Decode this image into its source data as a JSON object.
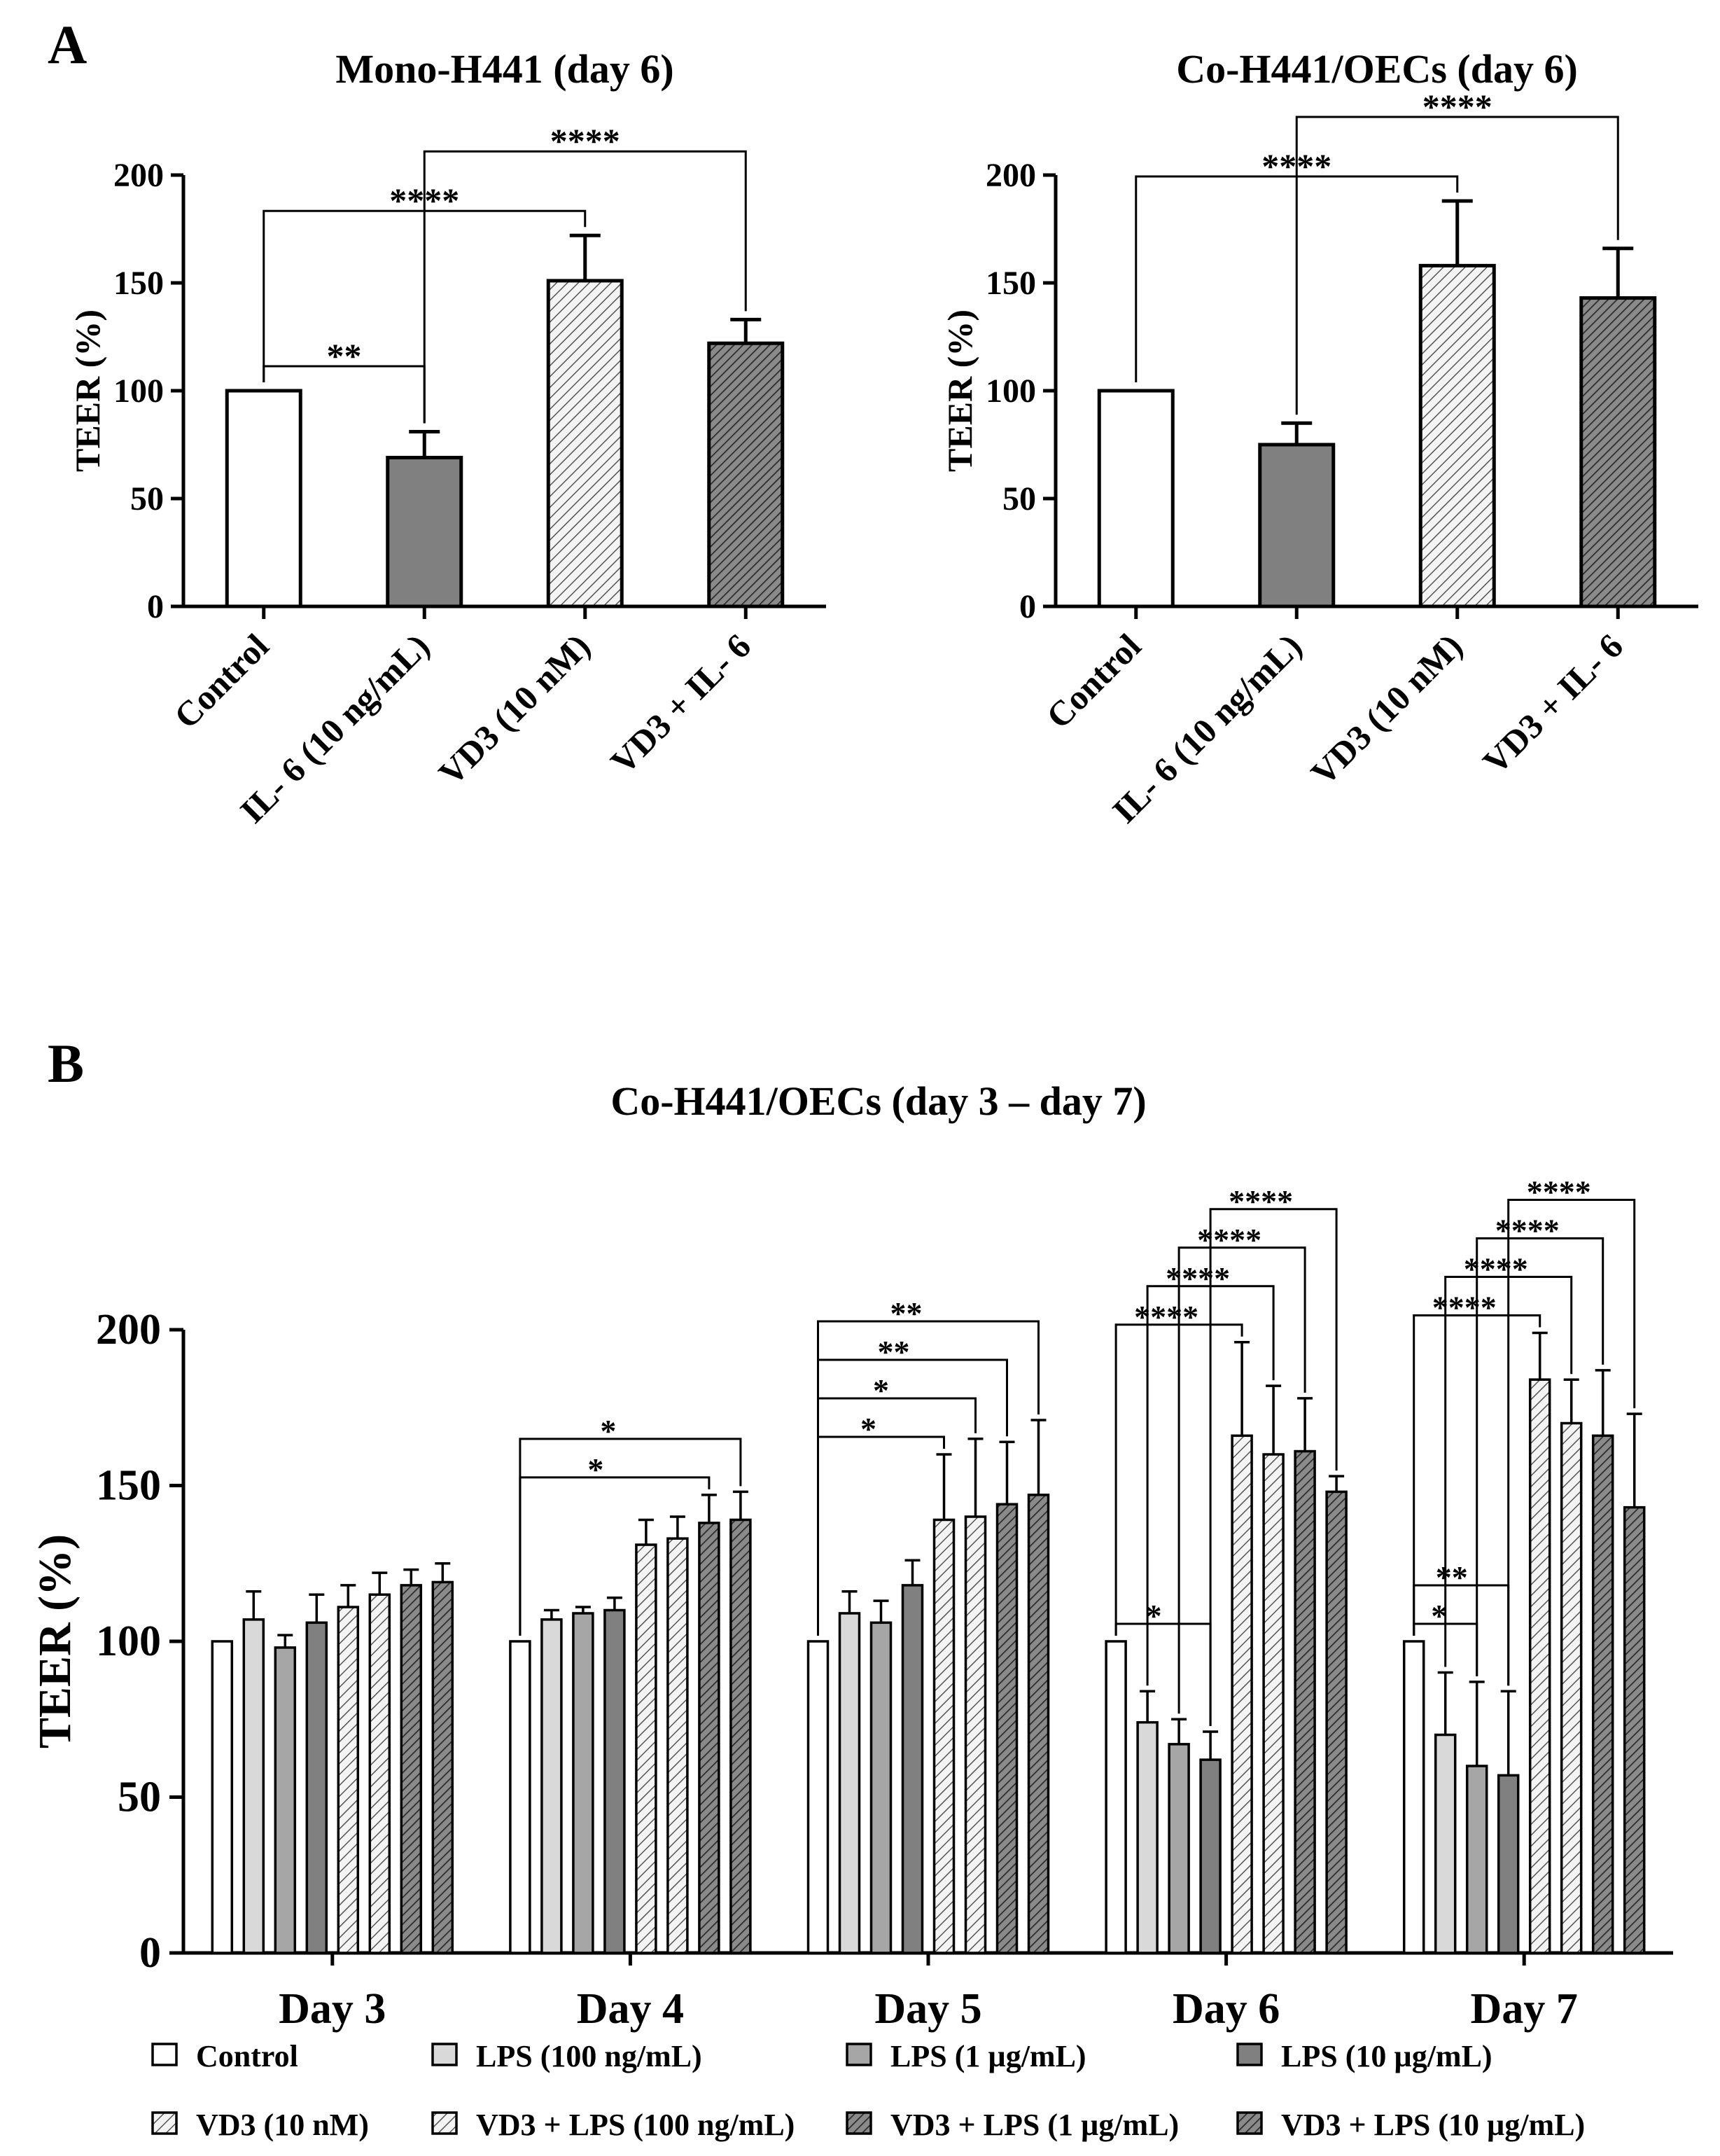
{
  "panel_labels": {
    "a": "A",
    "b": "B"
  },
  "colors": {
    "axis": "#000000",
    "control": "#ffffff",
    "lps_light": "#d9d9d9",
    "lps_mid": "#a6a6a6",
    "lps_dark": "#808080",
    "il6": "#808080",
    "hatch_light_bg": "#f2f2f2",
    "hatch_dark_bg": "#7f7f7f"
  },
  "chart_data": [
    {
      "id": "A1",
      "type": "bar",
      "title": "Mono-H441 (day 6)",
      "ylabel": "TEER (%)",
      "xlabel": "",
      "ylim": [
        0,
        200
      ],
      "yticks": [
        0,
        50,
        100,
        150,
        200
      ],
      "categories": [
        "Control",
        "IL- 6 (10 ng/mL)",
        "VD3 (10 nM)",
        "VD3 + IL- 6"
      ],
      "values": [
        100,
        69,
        151,
        122
      ],
      "errors": [
        0,
        12,
        21,
        11
      ],
      "fills": [
        "control",
        "il6",
        "hatch_light",
        "hatch_dark"
      ],
      "significance": [
        {
          "from": 0,
          "to": 1,
          "label": "**"
        },
        {
          "from": 0,
          "to": 2,
          "label": "****"
        },
        {
          "from": 1,
          "to": 3,
          "label": "****"
        }
      ]
    },
    {
      "id": "A2",
      "type": "bar",
      "title": "Co-H441/OECs (day 6)",
      "ylabel": "TEER (%)",
      "xlabel": "",
      "ylim": [
        0,
        200
      ],
      "yticks": [
        0,
        50,
        100,
        150,
        200
      ],
      "categories": [
        "Control",
        "IL- 6 (10 ng/mL)",
        "VD3 (10 nM)",
        "VD3 + IL- 6"
      ],
      "values": [
        100,
        75,
        158,
        143
      ],
      "errors": [
        0,
        10,
        30,
        23
      ],
      "fills": [
        "control",
        "il6",
        "hatch_light",
        "hatch_dark"
      ],
      "significance": [
        {
          "from": 0,
          "to": 2,
          "label": "****"
        },
        {
          "from": 1,
          "to": 3,
          "label": "****"
        }
      ]
    },
    {
      "id": "B",
      "type": "bar",
      "title": "Co-H441/OECs (day 3 – day 7)",
      "ylabel": "TEER (%)",
      "xlabel": "",
      "ylim": [
        0,
        200
      ],
      "yticks": [
        0,
        50,
        100,
        150,
        200
      ],
      "categories": [
        "Day 3",
        "Day 4",
        "Day 5",
        "Day 6",
        "Day 7"
      ],
      "legend_position": "bottom",
      "series": [
        {
          "name": "Control",
          "fill": "control",
          "values": [
            100,
            100,
            100,
            100,
            100
          ],
          "errors": [
            0,
            0,
            0,
            0,
            0
          ]
        },
        {
          "name": "LPS (100 ng/mL)",
          "fill": "lps_light",
          "values": [
            107,
            107,
            109,
            74,
            70
          ],
          "errors": [
            9,
            3,
            7,
            10,
            20
          ]
        },
        {
          "name": "LPS (1 µg/mL)",
          "fill": "lps_mid",
          "values": [
            98,
            109,
            106,
            67,
            60
          ],
          "errors": [
            4,
            2,
            7,
            8,
            27
          ]
        },
        {
          "name": "LPS (10 µg/mL)",
          "fill": "lps_dark",
          "values": [
            106,
            110,
            118,
            62,
            57
          ],
          "errors": [
            9,
            4,
            8,
            9,
            27
          ]
        },
        {
          "name": "VD3 (10 nM)",
          "fill": "hatch_light",
          "values": [
            111,
            131,
            139,
            166,
            184
          ],
          "errors": [
            7,
            8,
            21,
            30,
            15
          ]
        },
        {
          "name": "VD3 + LPS (100 ng/mL)",
          "fill": "hatch_light",
          "values": [
            115,
            133,
            140,
            160,
            170
          ],
          "errors": [
            7,
            7,
            25,
            22,
            14
          ]
        },
        {
          "name": "VD3 + LPS (1 µg/mL)",
          "fill": "hatch_dark",
          "values": [
            118,
            138,
            144,
            161,
            166
          ],
          "errors": [
            5,
            9,
            20,
            17,
            21
          ]
        },
        {
          "name": "VD3 + LPS (10 µg/mL)",
          "fill": "hatch_dark",
          "values": [
            119,
            139,
            147,
            148,
            143
          ],
          "errors": [
            6,
            9,
            24,
            5,
            30
          ]
        }
      ],
      "significance": [
        {
          "group": 1,
          "from": 0,
          "to": 6,
          "label": "*"
        },
        {
          "group": 1,
          "from": 0,
          "to": 7,
          "label": "*"
        },
        {
          "group": 2,
          "from": 0,
          "to": 4,
          "label": "*"
        },
        {
          "group": 2,
          "from": 0,
          "to": 5,
          "label": "*"
        },
        {
          "group": 2,
          "from": 0,
          "to": 6,
          "label": "**"
        },
        {
          "group": 2,
          "from": 0,
          "to": 7,
          "label": "**"
        },
        {
          "group": 3,
          "from": 0,
          "to": 3,
          "label": "*"
        },
        {
          "group": 3,
          "from": 0,
          "to": 4,
          "label": "****"
        },
        {
          "group": 3,
          "from": 1,
          "to": 5,
          "label": "****"
        },
        {
          "group": 3,
          "from": 2,
          "to": 6,
          "label": "****"
        },
        {
          "group": 3,
          "from": 3,
          "to": 7,
          "label": "****"
        },
        {
          "group": 4,
          "from": 0,
          "to": 2,
          "label": "*"
        },
        {
          "group": 4,
          "from": 0,
          "to": 3,
          "label": "**"
        },
        {
          "group": 4,
          "from": 0,
          "to": 4,
          "label": "****"
        },
        {
          "group": 4,
          "from": 1,
          "to": 5,
          "label": "****"
        },
        {
          "group": 4,
          "from": 2,
          "to": 6,
          "label": "****"
        },
        {
          "group": 4,
          "from": 3,
          "to": 7,
          "label": "****"
        }
      ]
    }
  ]
}
